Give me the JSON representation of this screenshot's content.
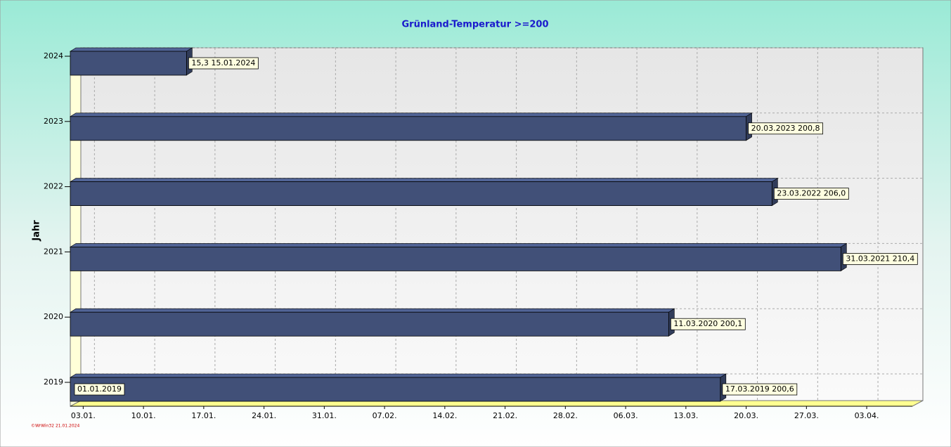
{
  "chart_data": {
    "type": "bar",
    "orientation": "horizontal",
    "title": "Grünland-Temperatur  >=200",
    "y_label": "Jahr",
    "categories": [
      "2024",
      "2023",
      "2022",
      "2021",
      "2020",
      "2019"
    ],
    "values": [
      15,
      80,
      83,
      91,
      71,
      77
    ],
    "value_labels": [
      "15,3  15.01.2024",
      "20.03.2023  200,8",
      "23.03.2022  206,0",
      "31.03.2021  210,4",
      "11.03.2020  200,1",
      "17.03.2019  200,6"
    ],
    "start_label": "01.01.2019",
    "color": "#415078",
    "xlim": [
      1.5,
      99.3
    ],
    "xticks": [
      {
        "value": 3,
        "label": "03.01."
      },
      {
        "value": 10,
        "label": "10.01."
      },
      {
        "value": 17,
        "label": "17.01."
      },
      {
        "value": 24,
        "label": "24.01."
      },
      {
        "value": 31,
        "label": "31.01."
      },
      {
        "value": 38,
        "label": "07.02."
      },
      {
        "value": 45,
        "label": "14.02."
      },
      {
        "value": 52,
        "label": "21.02."
      },
      {
        "value": 59,
        "label": "28.02."
      },
      {
        "value": 66,
        "label": "06.03."
      },
      {
        "value": 73,
        "label": "13.03."
      },
      {
        "value": 80,
        "label": "20.03."
      },
      {
        "value": 87,
        "label": "27.03."
      },
      {
        "value": 94,
        "label": "03.04."
      }
    ],
    "grid": true,
    "footer": "©WrWin32  21.01.2024"
  }
}
